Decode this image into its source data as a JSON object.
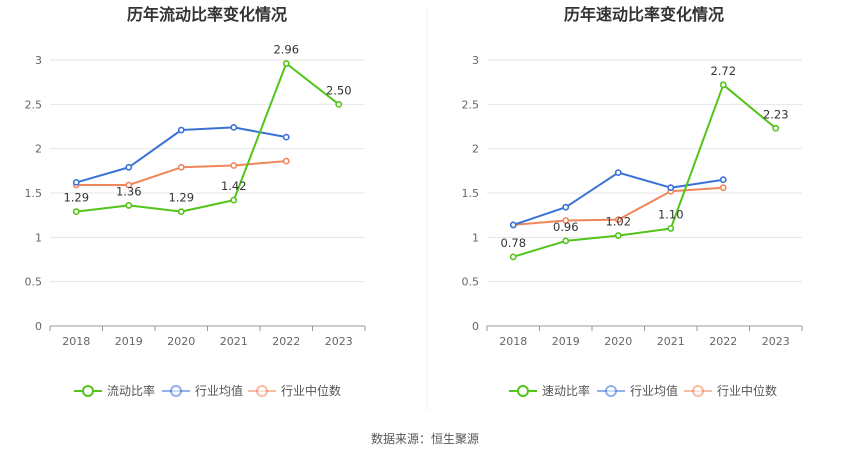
{
  "source_label": "数据来源：恒生聚源",
  "chart_data": [
    {
      "type": "line",
      "title": "历年流动比率变化情况",
      "categories": [
        "2018",
        "2019",
        "2020",
        "2021",
        "2022",
        "2023"
      ],
      "ylim": [
        0,
        3
      ],
      "yticks": [
        "0",
        "0.5",
        "1",
        "1.5",
        "2",
        "2.5",
        "3"
      ],
      "grid": true,
      "legend_position": "bottom",
      "series": [
        {
          "name": "流动比率",
          "color": "#52c41a",
          "values": [
            1.29,
            1.36,
            1.29,
            1.42,
            2.96,
            2.5
          ],
          "labels": [
            "1.29",
            "1.36",
            "1.29",
            "1.42",
            "2.96",
            "2.50"
          ]
        },
        {
          "name": "行业均值",
          "color": "#3b72d6",
          "values": [
            1.62,
            1.79,
            2.21,
            2.24,
            2.13,
            null
          ]
        },
        {
          "name": "行业中位数",
          "color": "#f0875a",
          "values": [
            1.59,
            1.59,
            1.79,
            1.81,
            1.86,
            null
          ]
        }
      ]
    },
    {
      "type": "line",
      "title": "历年速动比率变化情况",
      "categories": [
        "2018",
        "2019",
        "2020",
        "2021",
        "2022",
        "2023"
      ],
      "ylim": [
        0,
        3
      ],
      "yticks": [
        "0",
        "0.5",
        "1",
        "1.5",
        "2",
        "2.5",
        "3"
      ],
      "grid": true,
      "legend_position": "bottom",
      "series": [
        {
          "name": "速动比率",
          "color": "#52c41a",
          "values": [
            0.78,
            0.96,
            1.02,
            1.1,
            2.72,
            2.23
          ],
          "labels": [
            "0.78",
            "0.96",
            "1.02",
            "1.10",
            "2.72",
            "2.23"
          ]
        },
        {
          "name": "行业均值",
          "color": "#3b72d6",
          "values": [
            1.14,
            1.34,
            1.73,
            1.56,
            1.65,
            null
          ]
        },
        {
          "name": "行业中位数",
          "color": "#f0875a",
          "values": [
            1.14,
            1.19,
            1.2,
            1.52,
            1.56,
            null
          ]
        }
      ]
    }
  ]
}
